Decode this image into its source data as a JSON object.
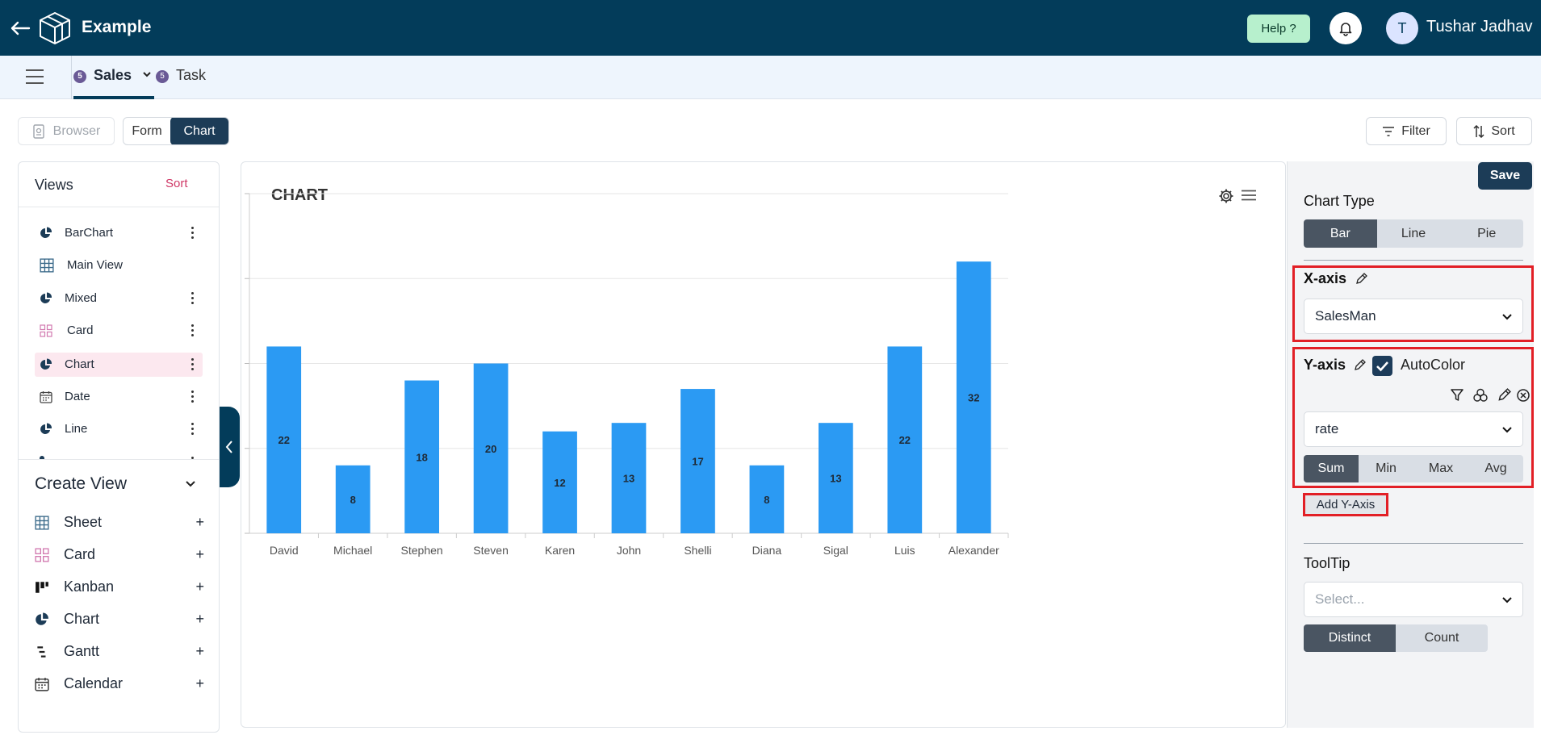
{
  "app": {
    "title": "Example",
    "help_label": "Help ?",
    "user_initial": "T",
    "user_name": "Tushar Jadhav"
  },
  "tabs": [
    {
      "label": "Sales",
      "badge": "5"
    },
    {
      "label": "Task",
      "badge": "5"
    }
  ],
  "toolbar": {
    "browser_label": "Browser",
    "form_label": "Form",
    "chart_label": "Chart",
    "filter_label": "Filter",
    "sort_label": "Sort"
  },
  "views": {
    "title": "Views",
    "sort_label": "Sort",
    "items": [
      {
        "label": "BarChart",
        "icon": "pie-chart-icon"
      },
      {
        "label": "Main View",
        "icon": "grid-icon"
      },
      {
        "label": "Mixed",
        "icon": "pie-chart-icon"
      },
      {
        "label": "Card",
        "icon": "card-icon"
      },
      {
        "label": "Chart",
        "icon": "pie-chart-icon"
      },
      {
        "label": "Date",
        "icon": "calendar-icon"
      },
      {
        "label": "Line",
        "icon": "pie-chart-icon"
      }
    ]
  },
  "create_view": {
    "title": "Create View",
    "items": [
      {
        "label": "Sheet",
        "icon": "grid-icon"
      },
      {
        "label": "Card",
        "icon": "card-icon"
      },
      {
        "label": "Kanban",
        "icon": "kanban-icon"
      },
      {
        "label": "Chart",
        "icon": "pie-chart-icon"
      },
      {
        "label": "Gantt",
        "icon": "gantt-icon"
      },
      {
        "label": "Calendar",
        "icon": "calendar-icon"
      }
    ]
  },
  "chart_panel": {
    "title": "CHART"
  },
  "settings": {
    "save_label": "Save",
    "chart_type_label": "Chart Type",
    "chart_types": [
      "Bar",
      "Line",
      "Pie"
    ],
    "x_axis_label": "X-axis",
    "x_axis_value": "SalesMan",
    "y_axis_label": "Y-axis",
    "autocolor_label": "AutoColor",
    "y_axis_value": "rate",
    "aggregations": [
      "Sum",
      "Min",
      "Max",
      "Avg"
    ],
    "add_y_label": "Add Y-Axis",
    "tooltip_label": "ToolTip",
    "tooltip_placeholder": "Select...",
    "tooltip_modes": [
      "Distinct",
      "Count"
    ]
  },
  "colors": {
    "topbar": "#033c5a",
    "bar": "#2b9af3",
    "accent_pink": "#cf3665",
    "highlight_red": "#e21f26"
  },
  "chart_data": {
    "type": "bar",
    "categories": [
      "David",
      "Michael",
      "Stephen",
      "Steven",
      "Karen",
      "John",
      "Shelli",
      "Diana",
      "Sigal",
      "Luis",
      "Alexander"
    ],
    "values": [
      22,
      8,
      18,
      20,
      12,
      13,
      17,
      8,
      13,
      22,
      32
    ],
    "yticks": [
      0,
      10,
      20,
      30,
      40
    ],
    "ylim": [
      0,
      40
    ],
    "grid": true,
    "data_labels": true
  }
}
